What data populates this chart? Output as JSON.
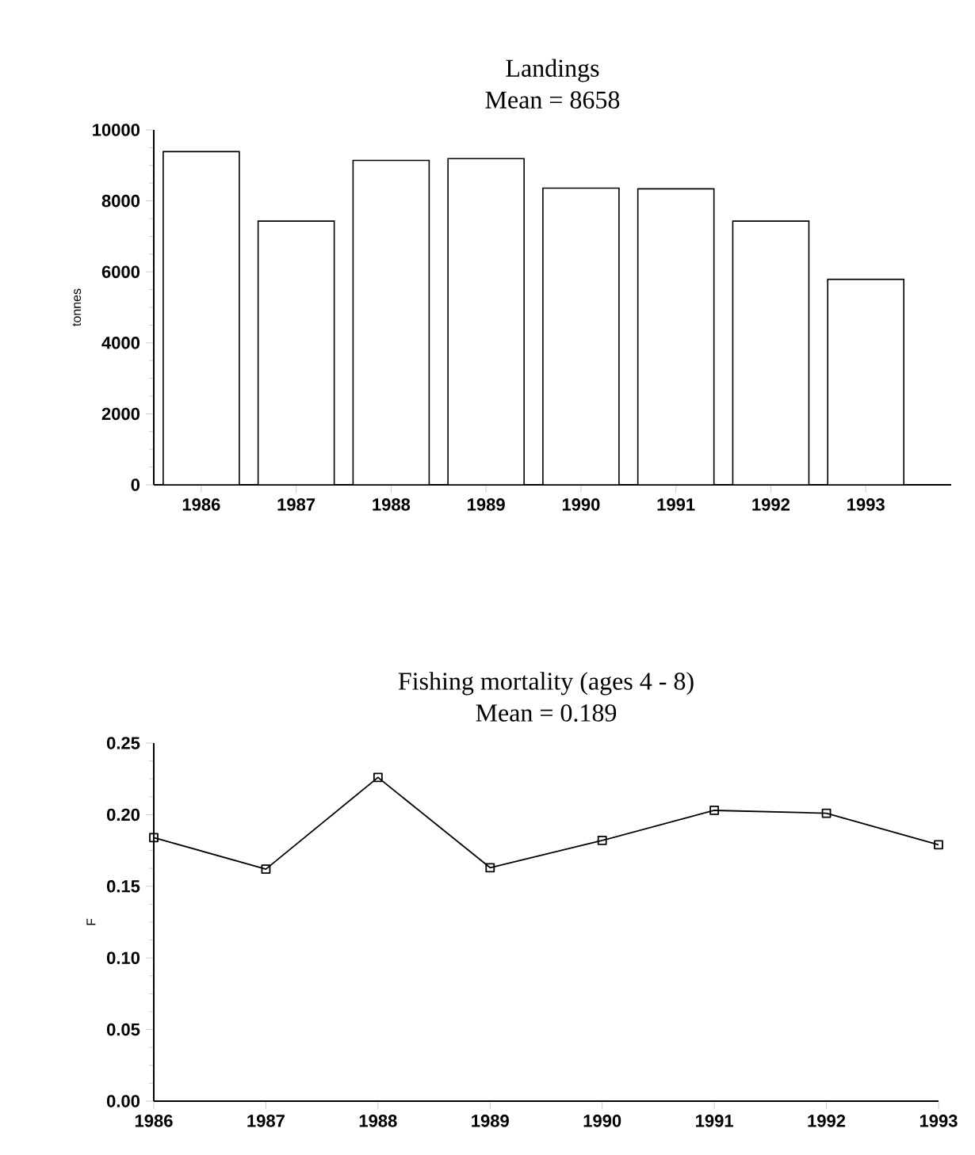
{
  "chart_data": [
    {
      "type": "bar",
      "title": "Landings",
      "subtitle": "Mean = 8658",
      "ylabel": "tonnes",
      "categories": [
        "1986",
        "1987",
        "1988",
        "1989",
        "1990",
        "1991",
        "1992",
        "1993"
      ],
      "values": [
        9390,
        7430,
        9140,
        9190,
        8360,
        8340,
        7430,
        5790
      ],
      "color": "#ffffff",
      "ylim": [
        0,
        10000
      ],
      "yticks": [
        0,
        2000,
        4000,
        6000,
        8000,
        10000
      ]
    },
    {
      "type": "line",
      "title": "Fishing mortality (ages 4 - 8)",
      "subtitle": "Mean = 0.189",
      "ylabel": "F",
      "categories": [
        "1986",
        "1987",
        "1988",
        "1989",
        "1990",
        "1991",
        "1992",
        "1993"
      ],
      "values": [
        0.184,
        0.162,
        0.226,
        0.163,
        0.182,
        0.203,
        0.201,
        0.179
      ],
      "color": "#000000",
      "marker": "square",
      "line_style": "solid",
      "ylim": [
        0,
        0.25
      ],
      "yticks": [
        {
          "value": 0,
          "label": "0.00"
        },
        {
          "value": 0.05,
          "label": "0.05"
        },
        {
          "value": 0.1,
          "label": "0.10"
        },
        {
          "value": 0.15,
          "label": "0.15"
        },
        {
          "value": 0.2,
          "label": "0.20"
        },
        {
          "value": 0.25,
          "label": "0.25"
        }
      ]
    }
  ]
}
